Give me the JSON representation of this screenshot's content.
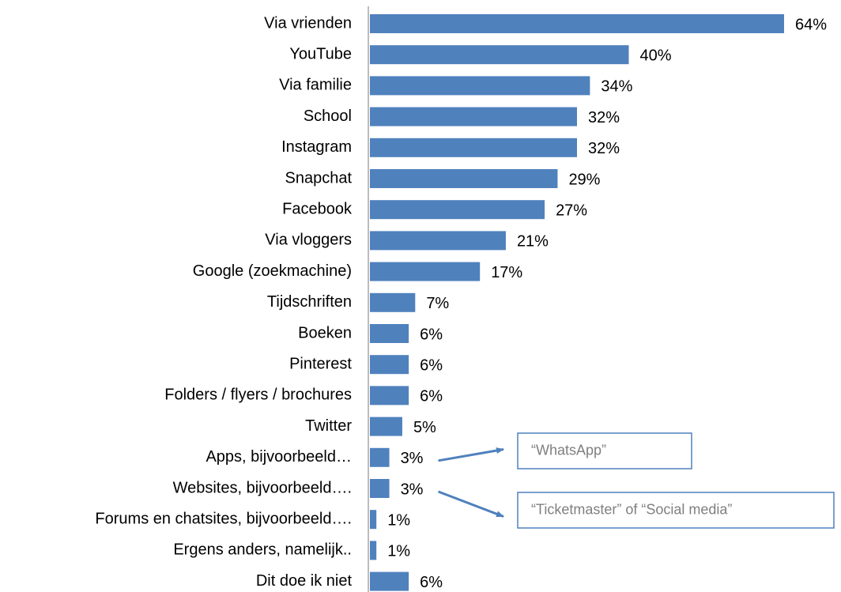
{
  "chart_data": {
    "type": "bar",
    "orientation": "horizontal",
    "categories": [
      "Via vrienden",
      "YouTube",
      "Via familie",
      "School",
      "Instagram",
      "Snapchat",
      "Facebook",
      "Via vloggers",
      "Google (zoekmachine)",
      "Tijdschriften",
      "Boeken",
      "Pinterest",
      "Folders / flyers / brochures",
      "Twitter",
      "Apps, bijvoorbeeld…",
      "Websites, bijvoorbeeld….",
      "Forums en chatsites, bijvoorbeeld….",
      "Ergens anders, namelijk..",
      "Dit doe ik niet"
    ],
    "values": [
      64,
      40,
      34,
      32,
      32,
      29,
      27,
      21,
      17,
      7,
      6,
      6,
      6,
      5,
      3,
      3,
      1,
      1,
      6
    ],
    "value_labels": [
      "64%",
      "40%",
      "34%",
      "32%",
      "32%",
      "29%",
      "27%",
      "21%",
      "17%",
      "7%",
      "6%",
      "6%",
      "6%",
      "5%",
      "3%",
      "3%",
      "1%",
      "1%",
      "6%"
    ],
    "color": "#4f81bd",
    "annotations": [
      {
        "text": "“WhatsApp”",
        "category_index": 14
      },
      {
        "text": "“Ticketmaster” of “Social media”",
        "category_index": 15
      }
    ]
  }
}
